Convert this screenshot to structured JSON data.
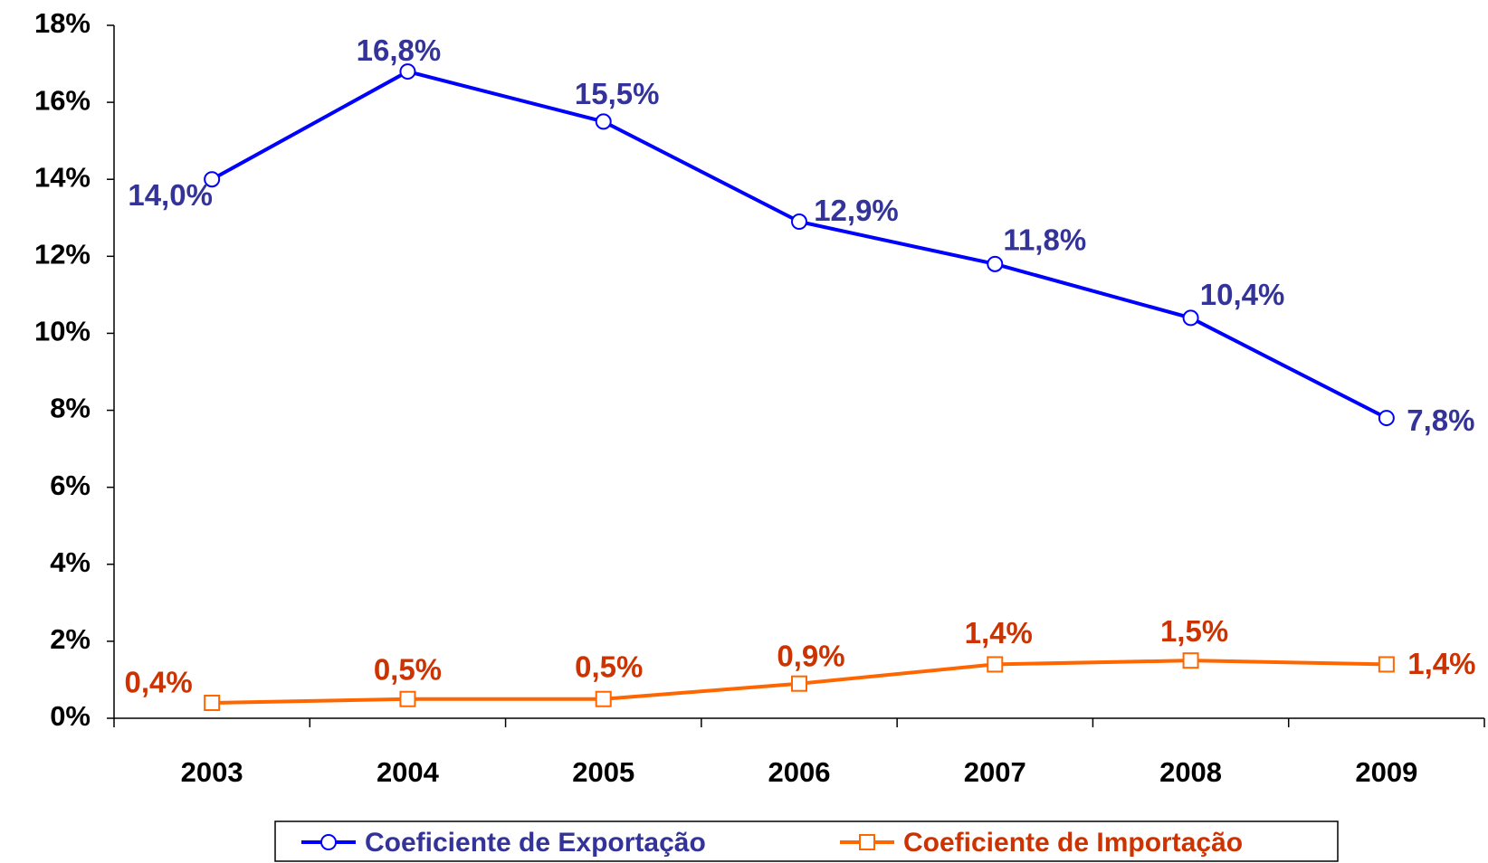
{
  "chart_data": {
    "type": "line",
    "categories": [
      "2003",
      "2004",
      "2005",
      "2006",
      "2007",
      "2008",
      "2009"
    ],
    "series": [
      {
        "name": "Coeficiente de Exportação",
        "color": "#0000ff",
        "label_color": "#333399",
        "marker": "circle",
        "values": [
          14.0,
          16.8,
          15.5,
          12.9,
          11.8,
          10.4,
          7.8
        ],
        "value_labels": [
          "14,0%",
          "16,8%",
          "15,5%",
          "12,9%",
          "11,8%",
          "10,4%",
          "7,8%"
        ]
      },
      {
        "name": "Coeficiente de Importação",
        "color": "#ff6600",
        "label_color": "#cc3300",
        "marker": "square",
        "values": [
          0.4,
          0.5,
          0.5,
          0.9,
          1.4,
          1.5,
          1.4
        ],
        "value_labels": [
          "0,4%",
          "0,5%",
          "0,5%",
          "0,9%",
          "1,4%",
          "1,5%",
          "1,4%"
        ]
      }
    ],
    "ylim": [
      0,
      18
    ],
    "yticks": [
      {
        "value": 0,
        "label": "0%"
      },
      {
        "value": 2,
        "label": "2%"
      },
      {
        "value": 4,
        "label": "4%"
      },
      {
        "value": 6,
        "label": "6%"
      },
      {
        "value": 8,
        "label": "8%"
      },
      {
        "value": 10,
        "label": "10%"
      },
      {
        "value": 12,
        "label": "12%"
      },
      {
        "value": 14,
        "label": "14%"
      },
      {
        "value": 16,
        "label": "16%"
      },
      {
        "value": 18,
        "label": "18%"
      }
    ],
    "grid": false,
    "legend": "bottom"
  }
}
